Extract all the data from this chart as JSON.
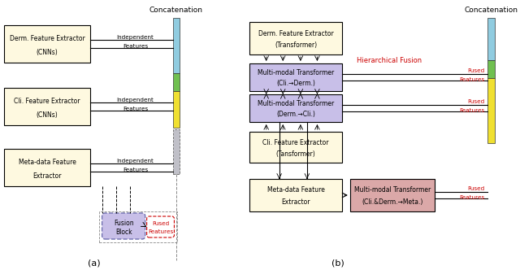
{
  "fig_width": 6.4,
  "fig_height": 3.32,
  "dpi": 100,
  "bg_color": "#ffffff",
  "box_fill_yellow": "#fef9e0",
  "box_fill_purple": "#c8bfe8",
  "box_fill_pink": "#dba8a8",
  "color_cyan": "#90cce0",
  "color_green": "#70c050",
  "color_yellow": "#f0e030",
  "color_gray": "#c0c0c8",
  "red_text": "#cc0000",
  "black": "#000000",
  "label_a": "(a)",
  "label_b": "(b)",
  "concat_label": "Concatenation",
  "hier_fusion_label": "Hierarchical Fusion",
  "indep_features": "Independent\nFeatures",
  "fused_features_line1": "Fused",
  "fused_features_line2": "Features"
}
